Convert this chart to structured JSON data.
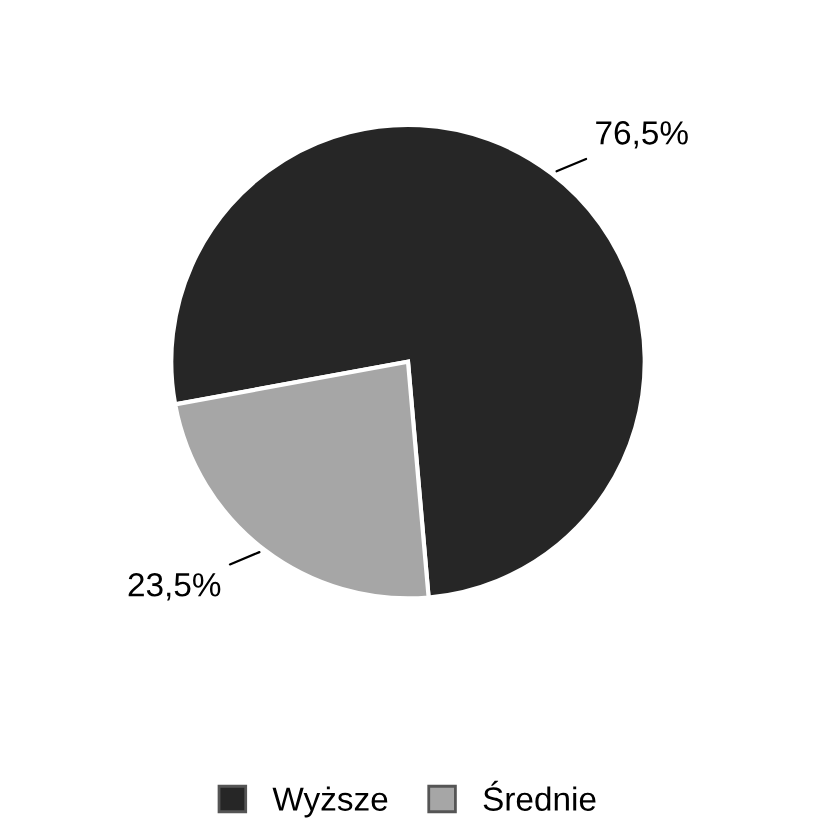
{
  "chart_data": {
    "type": "pie",
    "categories": [
      "Wyższe",
      "Średnie"
    ],
    "values": [
      76.5,
      23.5
    ],
    "colors": [
      "#262626",
      "#a6a6a6"
    ],
    "value_labels": [
      "76,5%",
      "23,5%"
    ],
    "legend": "bottom"
  }
}
